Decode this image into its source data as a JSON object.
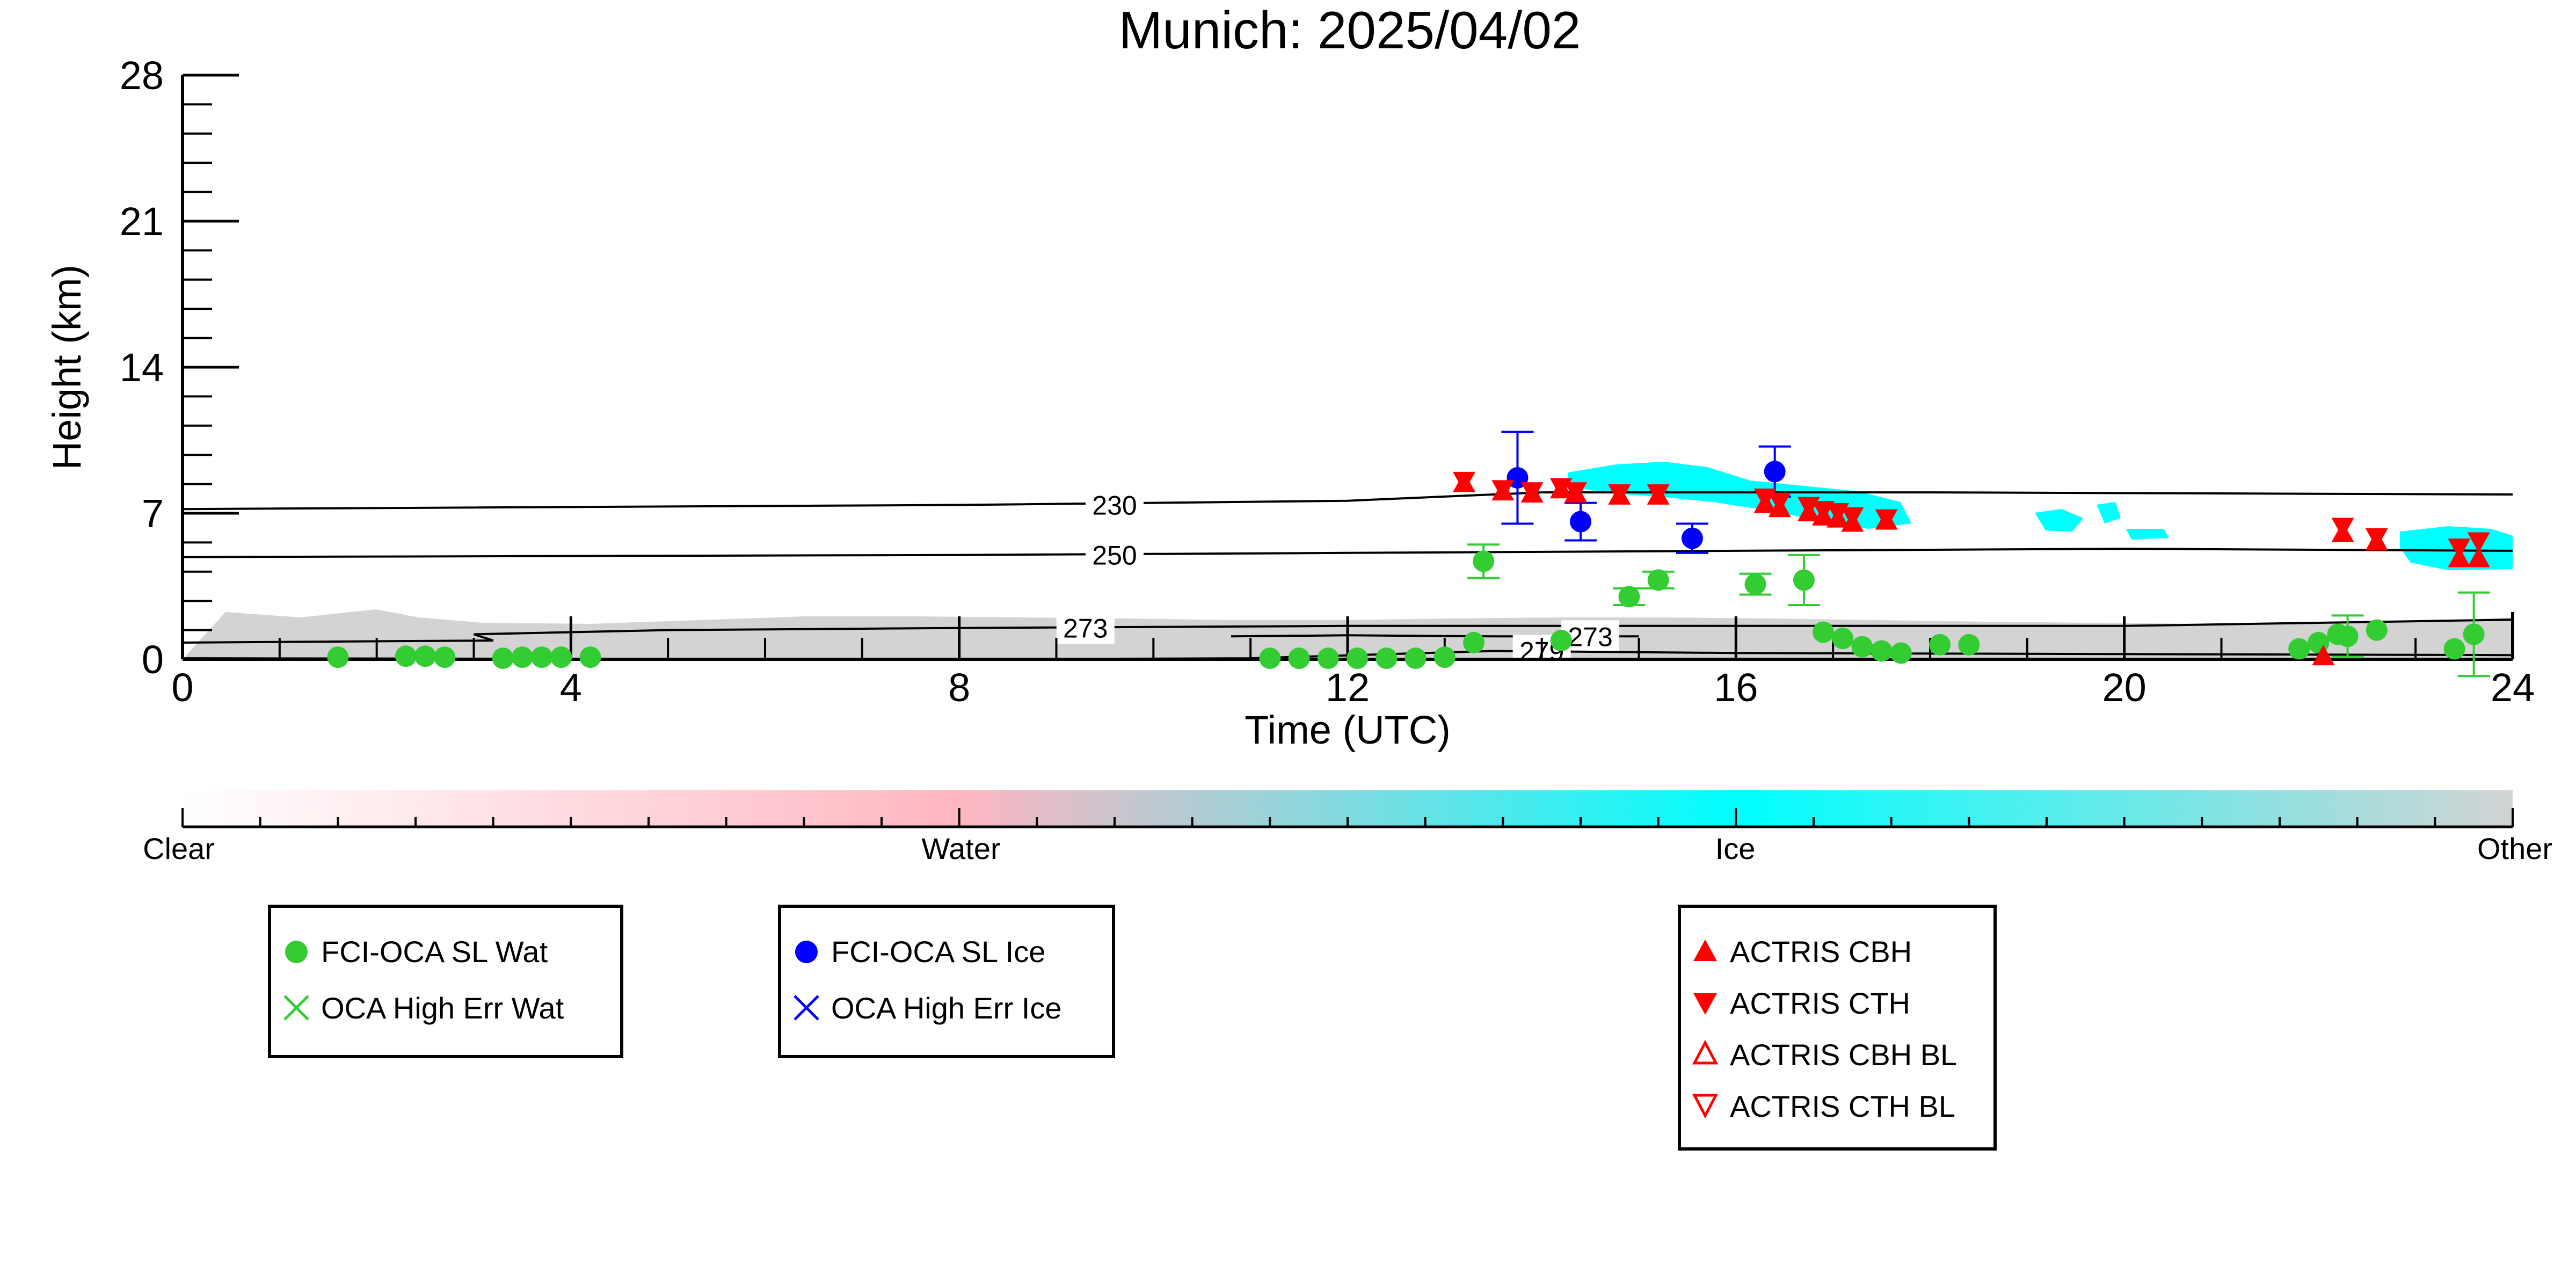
{
  "chart_data": {
    "type": "scatter",
    "title": "Munich: 2025/04/02",
    "xlabel": "Time (UTC)",
    "ylabel": "Height (km)",
    "xlim": [
      0,
      24
    ],
    "ylim": [
      0,
      28
    ],
    "x_ticks": [
      "0",
      "4",
      "8",
      "12",
      "16",
      "20",
      "24"
    ],
    "y_ticks": [
      "0",
      "7",
      "14",
      "21",
      "28"
    ],
    "grid": false,
    "colorbar": {
      "labels": [
        "Clear",
        "Water",
        "Ice",
        "Other"
      ],
      "colors": [
        "#ffffff",
        "#ffb6c1",
        "#00ffff",
        "#d3d3d3"
      ]
    },
    "isotherms": [
      {
        "label": "230",
        "label_x": 9.6,
        "label_y": 7.4,
        "points": [
          [
            0,
            7.2
          ],
          [
            8,
            7.4
          ],
          [
            12,
            7.6
          ],
          [
            14,
            8.0
          ],
          [
            18,
            8.0
          ],
          [
            24,
            7.9
          ]
        ]
      },
      {
        "label": "250",
        "label_x": 9.6,
        "label_y": 5.0,
        "points": [
          [
            0,
            4.9
          ],
          [
            8,
            5.0
          ],
          [
            12,
            5.1
          ],
          [
            16,
            5.2
          ],
          [
            20,
            5.3
          ],
          [
            24,
            5.2
          ]
        ]
      },
      {
        "label": "273",
        "label_x": 9.3,
        "label_y": 1.5,
        "points": [
          [
            0,
            0.8
          ],
          [
            3.2,
            0.9
          ],
          [
            3.0,
            1.2
          ],
          [
            5,
            1.4
          ],
          [
            8,
            1.5
          ],
          [
            12,
            1.6
          ],
          [
            16,
            1.6
          ],
          [
            20,
            1.6
          ],
          [
            24,
            1.9
          ]
        ]
      },
      {
        "label": "273",
        "label_x": 14.5,
        "label_y": 1.1,
        "points": [
          [
            10.8,
            1.1
          ],
          [
            12,
            1.15
          ],
          [
            13.5,
            1.1
          ],
          [
            15,
            1.1
          ]
        ]
      },
      {
        "label": "279",
        "label_x": 14.0,
        "label_y": 0.4,
        "points": [
          [
            0,
            0.05
          ],
          [
            8,
            0.0
          ],
          [
            11,
            0.05
          ],
          [
            13.5,
            0.4
          ],
          [
            16,
            0.3
          ],
          [
            20,
            0.25
          ],
          [
            24,
            0.2
          ]
        ]
      }
    ],
    "series": [
      {
        "name": "FCI-OCA SL Wat",
        "color": "#33cc33",
        "marker": "circle",
        "points": [
          {
            "x": 1.6,
            "y": 0.1
          },
          {
            "x": 2.3,
            "y": 0.15
          },
          {
            "x": 2.5,
            "y": 0.15
          },
          {
            "x": 2.7,
            "y": 0.1
          },
          {
            "x": 3.3,
            "y": 0.05
          },
          {
            "x": 3.5,
            "y": 0.1
          },
          {
            "x": 3.7,
            "y": 0.1
          },
          {
            "x": 3.9,
            "y": 0.1
          },
          {
            "x": 4.2,
            "y": 0.1
          },
          {
            "x": 11.2,
            "y": 0.05
          },
          {
            "x": 11.5,
            "y": 0.05
          },
          {
            "x": 11.8,
            "y": 0.05
          },
          {
            "x": 12.1,
            "y": 0.05
          },
          {
            "x": 12.4,
            "y": 0.05
          },
          {
            "x": 12.7,
            "y": 0.05
          },
          {
            "x": 13.0,
            "y": 0.1
          },
          {
            "x": 13.3,
            "y": 0.8
          },
          {
            "x": 13.4,
            "y": 4.7,
            "err": 0.8
          },
          {
            "x": 14.2,
            "y": 0.9
          },
          {
            "x": 14.9,
            "y": 3.0,
            "err": 0.4
          },
          {
            "x": 15.2,
            "y": 3.8,
            "err": 0.4
          },
          {
            "x": 16.2,
            "y": 3.6,
            "err": 0.5
          },
          {
            "x": 16.7,
            "y": 3.8,
            "err": 1.2
          },
          {
            "x": 16.9,
            "y": 1.3
          },
          {
            "x": 17.1,
            "y": 1.0
          },
          {
            "x": 17.3,
            "y": 0.6
          },
          {
            "x": 17.5,
            "y": 0.4
          },
          {
            "x": 17.7,
            "y": 0.3
          },
          {
            "x": 18.1,
            "y": 0.7
          },
          {
            "x": 18.4,
            "y": 0.7
          },
          {
            "x": 21.8,
            "y": 0.5
          },
          {
            "x": 22.0,
            "y": 0.8
          },
          {
            "x": 22.2,
            "y": 1.2
          },
          {
            "x": 22.3,
            "y": 1.1,
            "err": 1.0
          },
          {
            "x": 22.6,
            "y": 1.4
          },
          {
            "x": 23.4,
            "y": 0.5
          },
          {
            "x": 23.6,
            "y": 1.2,
            "err": 2.0
          }
        ]
      },
      {
        "name": "OCA High Err Wat",
        "color": "#33cc33",
        "marker": "x",
        "points": []
      },
      {
        "name": "FCI-OCA SL Ice",
        "color": "#0000ff",
        "marker": "circle",
        "points": [
          {
            "x": 13.75,
            "y": 8.7,
            "err": 2.2
          },
          {
            "x": 14.4,
            "y": 6.6,
            "err": 0.9
          },
          {
            "x": 15.55,
            "y": 5.8,
            "err": 0.7
          },
          {
            "x": 16.4,
            "y": 9.0,
            "err": 1.2
          }
        ]
      },
      {
        "name": "OCA High Err Ice",
        "color": "#0000ff",
        "marker": "x",
        "points": []
      },
      {
        "name": "ACTRIS CBH",
        "color": "#ff0000",
        "marker": "triangle-up",
        "points": [
          {
            "x": 13.2,
            "y": 8.4
          },
          {
            "x": 13.6,
            "y": 8.0
          },
          {
            "x": 13.9,
            "y": 7.9
          },
          {
            "x": 14.2,
            "y": 8.1
          },
          {
            "x": 14.35,
            "y": 7.9
          },
          {
            "x": 14.8,
            "y": 7.8
          },
          {
            "x": 15.2,
            "y": 7.8
          },
          {
            "x": 16.3,
            "y": 7.4
          },
          {
            "x": 16.45,
            "y": 7.2
          },
          {
            "x": 16.75,
            "y": 7.0
          },
          {
            "x": 16.9,
            "y": 6.8
          },
          {
            "x": 17.05,
            "y": 6.7
          },
          {
            "x": 17.2,
            "y": 6.5
          },
          {
            "x": 17.55,
            "y": 6.6
          },
          {
            "x": 22.25,
            "y": 6.0
          },
          {
            "x": 22.6,
            "y": 5.6
          },
          {
            "x": 23.45,
            "y": 4.8
          },
          {
            "x": 23.65,
            "y": 4.8
          },
          {
            "x": 22.05,
            "y": 0.1
          }
        ]
      },
      {
        "name": "ACTRIS CTH",
        "color": "#ff0000",
        "marker": "triangle-down",
        "points": [
          {
            "x": 13.2,
            "y": 8.6
          },
          {
            "x": 13.6,
            "y": 8.2
          },
          {
            "x": 13.9,
            "y": 8.1
          },
          {
            "x": 14.2,
            "y": 8.3
          },
          {
            "x": 14.35,
            "y": 8.1
          },
          {
            "x": 14.8,
            "y": 8.0
          },
          {
            "x": 15.2,
            "y": 8.0
          },
          {
            "x": 16.3,
            "y": 7.8
          },
          {
            "x": 16.45,
            "y": 7.6
          },
          {
            "x": 16.75,
            "y": 7.4
          },
          {
            "x": 16.9,
            "y": 7.2
          },
          {
            "x": 17.05,
            "y": 7.1
          },
          {
            "x": 17.2,
            "y": 6.9
          },
          {
            "x": 17.55,
            "y": 6.8
          },
          {
            "x": 22.25,
            "y": 6.4
          },
          {
            "x": 22.6,
            "y": 5.9
          },
          {
            "x": 23.45,
            "y": 5.4
          },
          {
            "x": 23.65,
            "y": 5.7
          }
        ]
      },
      {
        "name": "ACTRIS CBH BL",
        "color": "#ff0000",
        "marker": "triangle-up-open",
        "points": []
      },
      {
        "name": "ACTRIS CTH BL",
        "color": "#ff0000",
        "marker": "triangle-down-open",
        "points": []
      }
    ],
    "legend_groups": [
      [
        "FCI-OCA SL Wat",
        "OCA High Err Wat"
      ],
      [
        "FCI-OCA SL Ice",
        "OCA High Err Ice"
      ],
      [
        "ACTRIS CBH",
        "ACTRIS CTH",
        "ACTRIS CBH BL",
        "ACTRIS CTH BL"
      ]
    ],
    "legend_placement": "below"
  }
}
